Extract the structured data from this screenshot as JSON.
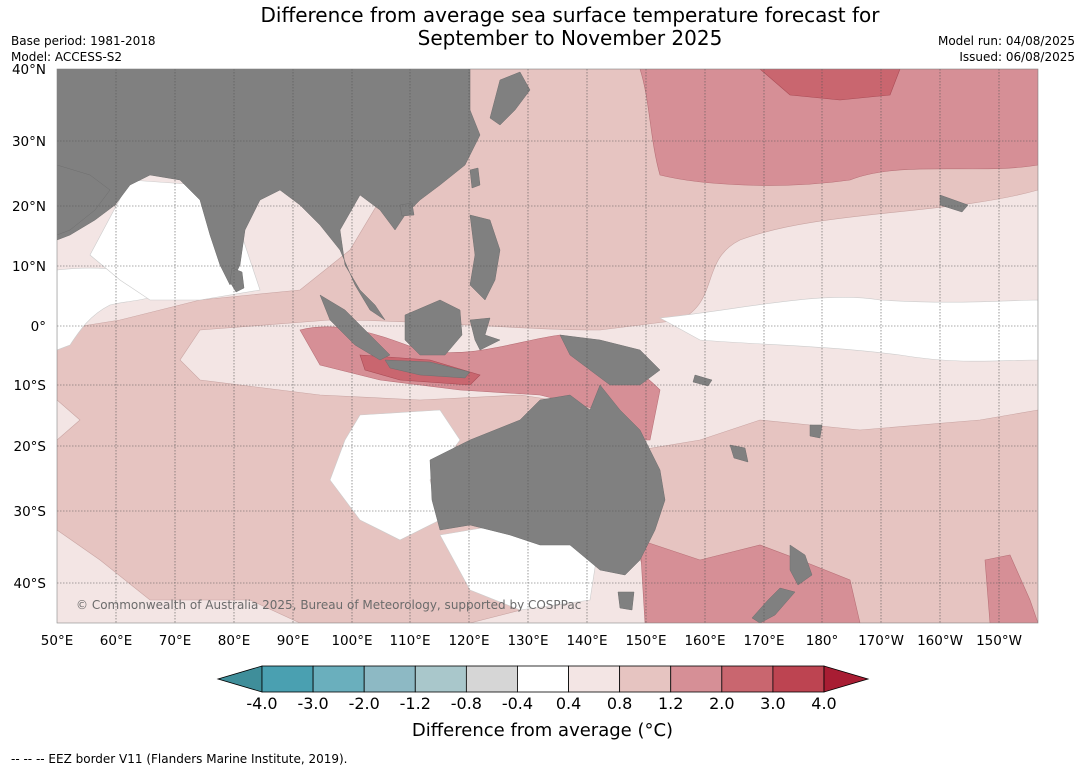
{
  "title_line1": "Difference from average sea surface temperature forecast for",
  "title_line2": "September to November 2025",
  "base_period": "Base period: 1981-2018",
  "model": "Model: ACCESS-S2",
  "model_run": "Model run: 04/08/2025",
  "issued": "Issued: 06/08/2025",
  "lat_labels": [
    "40°N",
    "30°N",
    "20°N",
    "10°N",
    "0°",
    "10°S",
    "20°S",
    "30°S",
    "40°S"
  ],
  "lon_labels": [
    "50°E",
    "60°E",
    "70°E",
    "80°E",
    "90°E",
    "100°E",
    "110°E",
    "120°E",
    "130°E",
    "140°E",
    "150°E",
    "160°E",
    "170°E",
    "180°",
    "170°W",
    "160°W",
    "150°W"
  ],
  "copyright": "© Commonwealth of Australia 2025, Bureau of Meteorology, supported by COSPPac",
  "colorbar": {
    "ticks": [
      "-4.0",
      "-3.0",
      "-2.0",
      "-1.2",
      "-0.8",
      "-0.4",
      "0.4",
      "0.8",
      "1.2",
      "2.0",
      "3.0",
      "4.0"
    ],
    "colors": [
      "#3f8e9a",
      "#4aa0b1",
      "#6aafbd",
      "#8db9c4",
      "#a9c7cb",
      "#d6d6d6",
      "#ffffff",
      "#f3e5e4",
      "#e6c4c1",
      "#d68f96",
      "#c9666f",
      "#bd4451",
      "#a81d33"
    ],
    "label": "Difference from average (°C)"
  },
  "map_colors": {
    "land": "#808080",
    "neutral": "#ffffff",
    "anom_0_4": "#f3e5e4",
    "anom_0_8": "#e6c4c1",
    "anom_1_2": "#d68f96",
    "anom_2_0": "#c9666f"
  },
  "footnote": "--  --  -- EEZ border V11 (Flanders Marine Institute, 2019)."
}
